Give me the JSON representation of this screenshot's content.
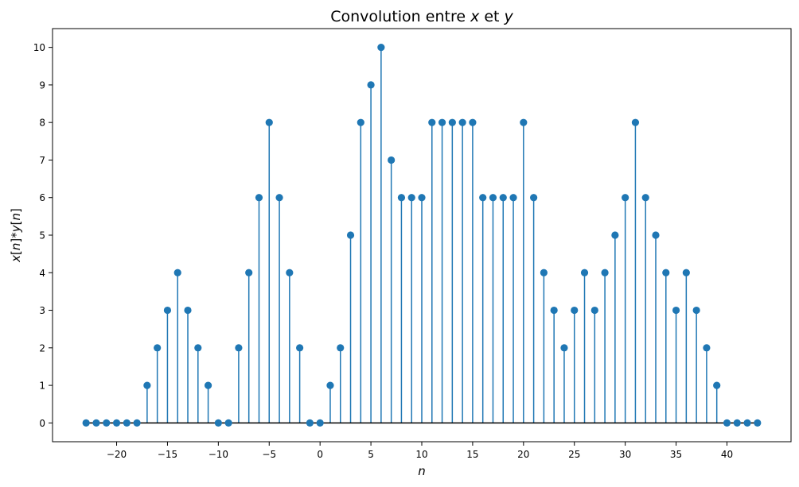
{
  "chart_data": {
    "type": "stem",
    "title": "Convolution entre x et y",
    "title_parts": [
      {
        "text": "Convolution entre ",
        "italic": false
      },
      {
        "text": "x",
        "italic": true
      },
      {
        "text": " et ",
        "italic": false
      },
      {
        "text": "y",
        "italic": true
      }
    ],
    "xlabel": "n",
    "ylabel": "x[n]*y[n]",
    "xlim": [
      -26.3,
      46.3
    ],
    "ylim": [
      -0.5,
      10.5
    ],
    "xticks": [
      -20,
      -15,
      -10,
      -5,
      0,
      5,
      10,
      15,
      20,
      25,
      30,
      35,
      40
    ],
    "yticks": [
      0,
      1,
      2,
      3,
      4,
      5,
      6,
      7,
      8,
      9,
      10
    ],
    "grid": false,
    "color": "#1f77b4",
    "baseline_color": "#000000",
    "x": [
      -23,
      -22,
      -21,
      -20,
      -19,
      -18,
      -17,
      -16,
      -15,
      -14,
      -13,
      -12,
      -11,
      -10,
      -9,
      -8,
      -7,
      -6,
      -5,
      -4,
      -3,
      -2,
      -1,
      0,
      1,
      2,
      3,
      4,
      5,
      6,
      7,
      8,
      9,
      10,
      11,
      12,
      13,
      14,
      15,
      16,
      17,
      18,
      19,
      20,
      21,
      22,
      23,
      24,
      25,
      26,
      27,
      28,
      29,
      30,
      31,
      32,
      33,
      34,
      35,
      36,
      37,
      38,
      39,
      40,
      41,
      42,
      43
    ],
    "y": [
      0,
      0,
      0,
      0,
      0,
      0,
      1,
      2,
      3,
      4,
      3,
      2,
      1,
      0,
      0,
      2,
      4,
      6,
      8,
      6,
      4,
      2,
      0,
      0,
      1,
      2,
      5,
      8,
      9,
      10,
      7,
      6,
      6,
      6,
      8,
      8,
      8,
      8,
      8,
      6,
      6,
      6,
      6,
      8,
      6,
      4,
      3,
      2,
      3,
      4,
      3,
      4,
      5,
      6,
      8,
      6,
      5,
      4,
      3,
      4,
      3,
      2,
      1,
      0,
      0,
      0,
      0
    ]
  }
}
